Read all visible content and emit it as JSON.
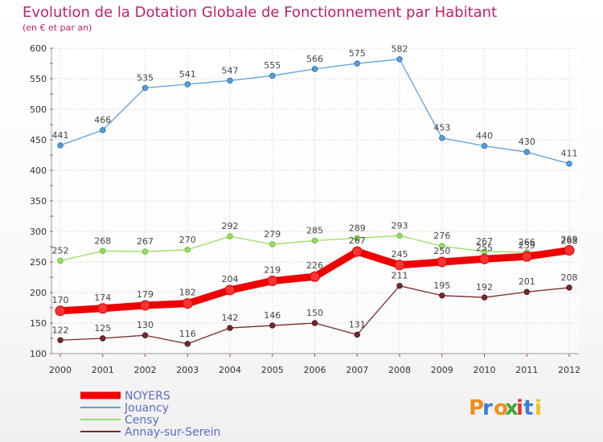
{
  "chart_data": {
    "type": "line",
    "title": "Evolution de la Dotation Globale de Fonctionnement par Habitant",
    "subtitle": "(en € et par an)",
    "x": [
      "2000",
      "2001",
      "2002",
      "2003",
      "2004",
      "2005",
      "2006",
      "2007",
      "2008",
      "2009",
      "2010",
      "2011",
      "2012"
    ],
    "ylim": [
      100,
      600
    ],
    "yticks": [
      100,
      150,
      200,
      250,
      300,
      350,
      400,
      450,
      500,
      550,
      600
    ],
    "grid": true,
    "legend_position": "bottom-left",
    "series": [
      {
        "name": "NOYERS",
        "color": "#ee0000",
        "values": [
          170,
          174,
          179,
          182,
          204,
          219,
          226,
          267,
          245,
          250,
          255,
          259,
          269
        ]
      },
      {
        "name": "Jouancy",
        "color": "#5aa0d8",
        "values": [
          441,
          466,
          535,
          541,
          547,
          555,
          566,
          575,
          582,
          453,
          440,
          430,
          411
        ]
      },
      {
        "name": "Censy",
        "color": "#99dd66",
        "values": [
          252,
          268,
          267,
          270,
          292,
          279,
          285,
          289,
          293,
          276,
          267,
          266,
          268
        ]
      },
      {
        "name": "Annay-sur-Serein",
        "color": "#7a2a2a",
        "values": [
          122,
          125,
          130,
          116,
          142,
          146,
          150,
          131,
          211,
          195,
          192,
          201,
          208
        ]
      }
    ]
  },
  "logo": {
    "letters": [
      "P",
      "r",
      "o",
      "x",
      "i",
      "t",
      "i"
    ]
  }
}
